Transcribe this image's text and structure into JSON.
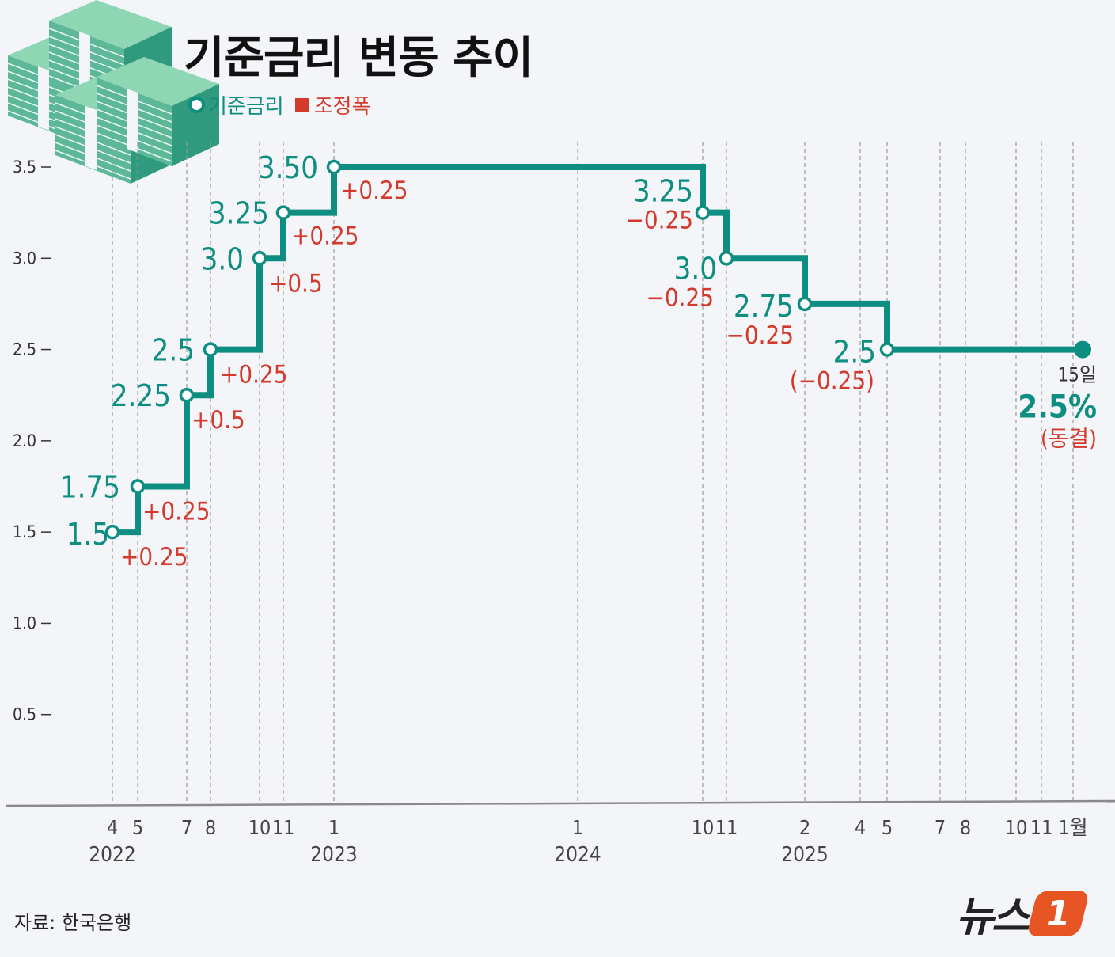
{
  "title": "기준금리 변동 추이",
  "legend": {
    "rate": "기준금리",
    "change": "조정폭"
  },
  "source": "자료: 한국은행",
  "brand": {
    "text": "뉴스",
    "badge": "1"
  },
  "icons": {
    "decor": "money-stack-icon",
    "rate_marker": "circle-outline",
    "change_marker": "square"
  },
  "colors": {
    "rate": "#0e8e80",
    "change": "#d43a2c",
    "guide": "#9a9a9a",
    "background": "#f4f5f9"
  },
  "chart_data": {
    "type": "line",
    "step": true,
    "series": [
      {
        "name": "기준금리"
      }
    ],
    "ylim": [
      0,
      3.5
    ],
    "yticks": [
      {
        "value": 3.5,
        "label": "3.5"
      },
      {
        "value": 3.0,
        "label": "3.0"
      },
      {
        "value": 2.5,
        "label": "2.5"
      },
      {
        "value": 2.0,
        "label": "2.0"
      },
      {
        "value": 1.5,
        "label": "1.5"
      },
      {
        "value": 1.0,
        "label": "1.0"
      },
      {
        "value": 0.5,
        "label": "0.5"
      }
    ],
    "xlim": [
      "2022-04-01",
      "2026-01-15"
    ],
    "xticks": [
      {
        "date": "2022-04",
        "label": "4"
      },
      {
        "date": "2022-05",
        "label": "5"
      },
      {
        "date": "2022-07",
        "label": "7"
      },
      {
        "date": "2022-08",
        "label": "8"
      },
      {
        "date": "2022-10",
        "label": "10"
      },
      {
        "date": "2022-11",
        "label": "11"
      },
      {
        "date": "2023-01",
        "label": "1"
      },
      {
        "date": "2024-01",
        "label": "1"
      },
      {
        "date": "2024-10",
        "label": "10"
      },
      {
        "date": "2024-11",
        "label": "11"
      },
      {
        "date": "2025-02",
        "label": "2"
      },
      {
        "date": "2025-04",
        "label": "4"
      },
      {
        "date": "2025-05",
        "label": "5"
      },
      {
        "date": "2025-07",
        "label": "7"
      },
      {
        "date": "2025-08",
        "label": "8"
      },
      {
        "date": "2025-10",
        "label": "10"
      },
      {
        "date": "2025-11",
        "label": "11"
      },
      {
        "date": "2026-01",
        "label": "1월"
      }
    ],
    "year_labels": [
      {
        "date": "2022-04",
        "label": "2022"
      },
      {
        "date": "2023-01",
        "label": "2023"
      },
      {
        "date": "2024-01",
        "label": "2024"
      },
      {
        "date": "2025-02",
        "label": "2025"
      }
    ],
    "points": [
      {
        "date": "2022-04",
        "rate": 1.5,
        "rate_label": "1.5",
        "change": "+0.25"
      },
      {
        "date": "2022-05",
        "rate": 1.75,
        "rate_label": "1.75",
        "change": "+0.25"
      },
      {
        "date": "2022-07",
        "rate": 2.25,
        "rate_label": "2.25",
        "change": "+0.5"
      },
      {
        "date": "2022-08",
        "rate": 2.5,
        "rate_label": "2.5",
        "change": "+0.25"
      },
      {
        "date": "2022-10",
        "rate": 3.0,
        "rate_label": "3.0",
        "change": "+0.5"
      },
      {
        "date": "2022-11",
        "rate": 3.25,
        "rate_label": "3.25",
        "change": "+0.25"
      },
      {
        "date": "2023-01",
        "rate": 3.5,
        "rate_label": "3.50",
        "change": "+0.25"
      },
      {
        "date": "2024-10",
        "rate": 3.25,
        "rate_label": "3.25",
        "change": "−0.25"
      },
      {
        "date": "2024-11",
        "rate": 3.0,
        "rate_label": "3.0",
        "change": "−0.25"
      },
      {
        "date": "2025-02",
        "rate": 2.75,
        "rate_label": "2.75",
        "change": "−0.25"
      },
      {
        "date": "2025-05",
        "rate": 2.5,
        "rate_label": "2.5",
        "change": "(−0.25)"
      }
    ],
    "last": {
      "date": "2026-01-15",
      "rate": 2.5,
      "day_label": "15일",
      "value_label": "2.5%",
      "note": "(동결)"
    }
  }
}
